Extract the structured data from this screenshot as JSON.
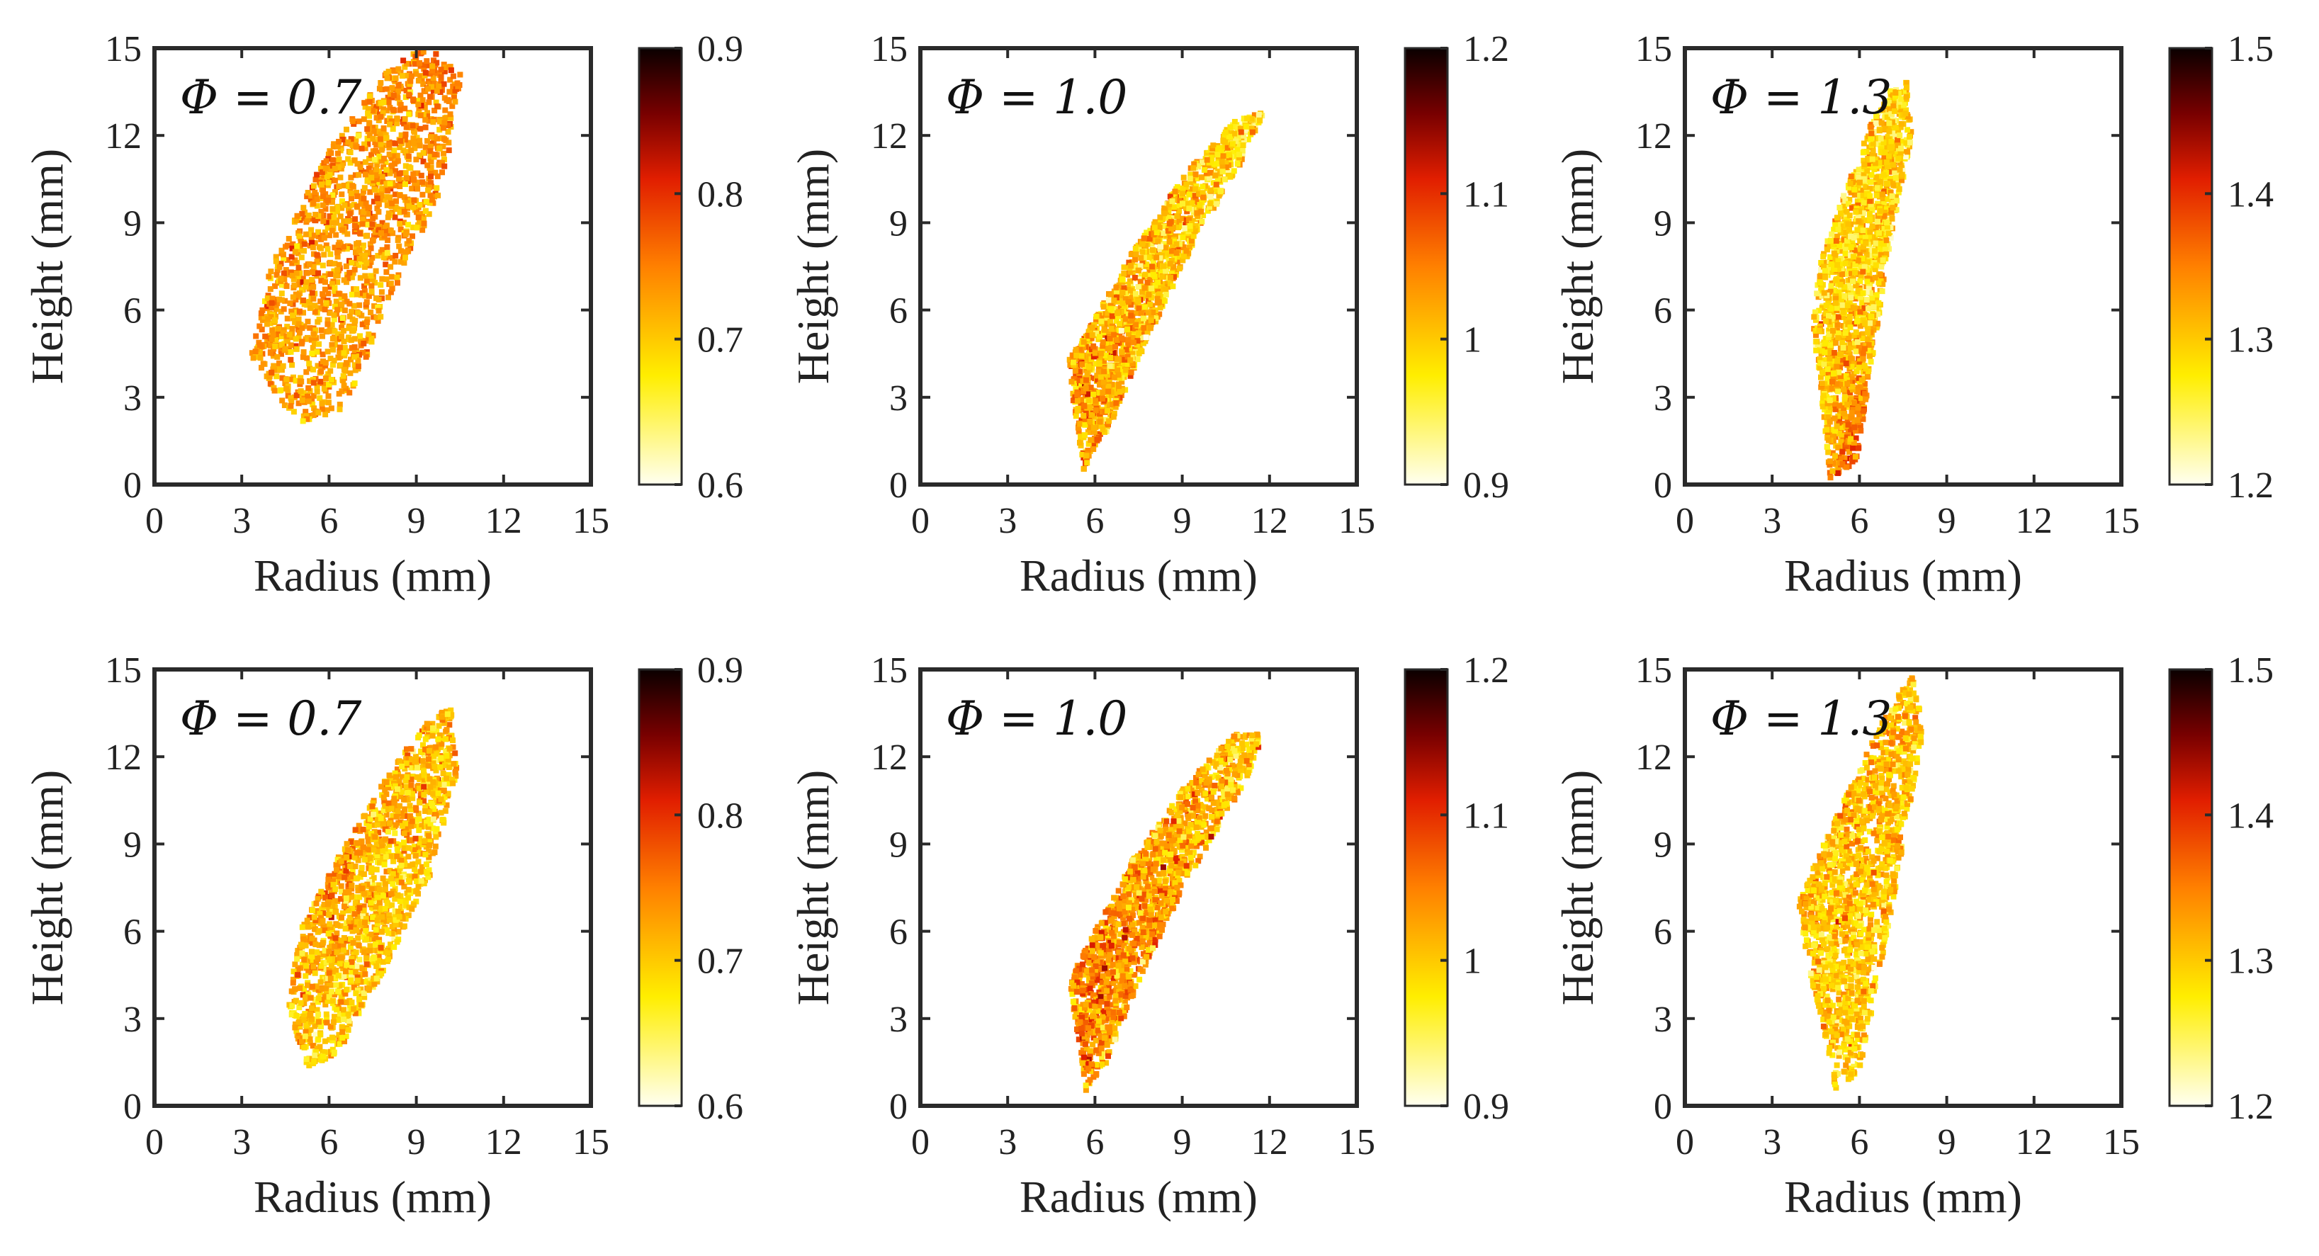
{
  "figure": {
    "rows": 2,
    "cols": 3
  },
  "chart_data": [
    {
      "type": "scatter",
      "panel": "row-1-col-1",
      "annotation_prefix": "Φ = ",
      "annotation_value": "0.7",
      "xlabel": "Radius (mm)",
      "ylabel": "Height (mm)",
      "xlim": [
        0,
        15
      ],
      "ylim": [
        0,
        15
      ],
      "xticks": [
        "0",
        "3",
        "6",
        "9",
        "12",
        "15"
      ],
      "yticks": [
        "0",
        "3",
        "6",
        "9",
        "12",
        "15"
      ],
      "colorbar": {
        "range": [
          0.6,
          0.9
        ],
        "ticks": [
          "0.6",
          "0.7",
          "0.8",
          "0.9"
        ]
      },
      "point_cloud": {
        "polygon": [
          [
            5.1,
            2.1
          ],
          [
            6.5,
            2.6
          ],
          [
            8.2,
            6.5
          ],
          [
            10.0,
            10.5
          ],
          [
            10.6,
            14.2
          ],
          [
            9.4,
            15.0
          ],
          [
            8.3,
            14.6
          ],
          [
            6.0,
            11.5
          ],
          [
            4.0,
            7.5
          ],
          [
            3.3,
            4.5
          ],
          [
            4.0,
            3.2
          ]
        ],
        "typical_value": 0.73,
        "value_spread": 0.025,
        "trend": "none"
      }
    },
    {
      "type": "scatter",
      "panel": "row-1-col-2",
      "annotation_prefix": "Φ = ",
      "annotation_value": "1.0",
      "xlabel": "Radius (mm)",
      "ylabel": "Height (mm)",
      "xlim": [
        0,
        15
      ],
      "ylim": [
        0,
        15
      ],
      "xticks": [
        "0",
        "3",
        "6",
        "9",
        "12",
        "15"
      ],
      "yticks": [
        "0",
        "3",
        "6",
        "9",
        "12",
        "15"
      ],
      "colorbar": {
        "range": [
          0.9,
          1.2
        ],
        "ticks": [
          "0.9",
          "1",
          "1.1",
          "1.2"
        ]
      },
      "point_cloud": {
        "polygon": [
          [
            5.6,
            0.5
          ],
          [
            6.3,
            1.5
          ],
          [
            7.8,
            5.0
          ],
          [
            9.5,
            8.5
          ],
          [
            11.0,
            11.0
          ],
          [
            11.8,
            12.8
          ],
          [
            10.8,
            12.5
          ],
          [
            9.2,
            10.8
          ],
          [
            7.3,
            8.0
          ],
          [
            5.6,
            5.0
          ],
          [
            5.1,
            4.3
          ],
          [
            5.3,
            2.5
          ]
        ],
        "typical_value": 1.0,
        "value_spread": 0.035,
        "trend": "darker-inner-edge"
      }
    },
    {
      "type": "scatter",
      "panel": "row-1-col-3",
      "annotation_prefix": "Φ = ",
      "annotation_value": "1.3",
      "xlabel": "Radius (mm)",
      "ylabel": "Height (mm)",
      "xlim": [
        0,
        15
      ],
      "ylim": [
        0,
        15
      ],
      "xticks": [
        "0",
        "3",
        "6",
        "9",
        "12",
        "15"
      ],
      "yticks": [
        "0",
        "3",
        "6",
        "9",
        "12",
        "15"
      ],
      "colorbar": {
        "range": [
          1.2,
          1.5
        ],
        "ticks": [
          "1.2",
          "1.3",
          "1.4",
          "1.5"
        ]
      },
      "point_cloud": {
        "polygon": [
          [
            5.0,
            0.2
          ],
          [
            5.9,
            0.8
          ],
          [
            6.4,
            4.0
          ],
          [
            7.0,
            8.0
          ],
          [
            7.8,
            12.0
          ],
          [
            7.6,
            14.0
          ],
          [
            7.0,
            13.5
          ],
          [
            6.2,
            12.0
          ],
          [
            5.3,
            9.5
          ],
          [
            4.6,
            7.5
          ],
          [
            4.4,
            5.5
          ],
          [
            4.7,
            3.0
          ]
        ],
        "typical_value": 1.29,
        "value_spread": 0.03,
        "trend": "darker-lower-core"
      }
    },
    {
      "type": "scatter",
      "panel": "row-2-col-1",
      "annotation_prefix": "Φ = ",
      "annotation_value": "0.7",
      "xlabel": "Radius (mm)",
      "ylabel": "Height (mm)",
      "xlim": [
        0,
        15
      ],
      "ylim": [
        0,
        15
      ],
      "xticks": [
        "0",
        "3",
        "6",
        "9",
        "12",
        "15"
      ],
      "yticks": [
        "0",
        "3",
        "6",
        "9",
        "12",
        "15"
      ],
      "colorbar": {
        "range": [
          0.6,
          0.9
        ],
        "ticks": [
          "0.6",
          "0.7",
          "0.8",
          "0.9"
        ]
      },
      "point_cloud": {
        "polygon": [
          [
            5.2,
            1.3
          ],
          [
            6.3,
            1.8
          ],
          [
            7.8,
            4.5
          ],
          [
            9.5,
            8.0
          ],
          [
            10.4,
            11.5
          ],
          [
            10.2,
            13.7
          ],
          [
            9.3,
            13.2
          ],
          [
            7.8,
            11.0
          ],
          [
            6.3,
            8.5
          ],
          [
            5.0,
            6.0
          ],
          [
            4.6,
            3.5
          ]
        ],
        "typical_value": 0.7,
        "value_spread": 0.03,
        "trend": "darker-upper-left"
      }
    },
    {
      "type": "scatter",
      "panel": "row-2-col-2",
      "annotation_prefix": "Φ = ",
      "annotation_value": "1.0",
      "xlabel": "Radius (mm)",
      "ylabel": "Height (mm)",
      "xlim": [
        0,
        15
      ],
      "ylim": [
        0,
        15
      ],
      "xticks": [
        "0",
        "3",
        "6",
        "9",
        "12",
        "15"
      ],
      "yticks": [
        "0",
        "3",
        "6",
        "9",
        "12",
        "15"
      ],
      "colorbar": {
        "range": [
          0.9,
          1.2
        ],
        "ticks": [
          "0.9",
          "1",
          "1.1",
          "1.2"
        ]
      },
      "point_cloud": {
        "polygon": [
          [
            5.7,
            0.5
          ],
          [
            6.4,
            1.5
          ],
          [
            7.8,
            5.0
          ],
          [
            9.6,
            8.5
          ],
          [
            11.2,
            11.2
          ],
          [
            11.8,
            12.8
          ],
          [
            10.8,
            12.8
          ],
          [
            9.1,
            11.0
          ],
          [
            7.2,
            8.3
          ],
          [
            5.6,
            5.2
          ],
          [
            5.1,
            4.3
          ],
          [
            5.4,
            2.5
          ]
        ],
        "typical_value": 1.02,
        "value_spread": 0.035,
        "trend": "darker-inner-edge"
      }
    },
    {
      "type": "scatter",
      "panel": "row-2-col-3",
      "annotation_prefix": "Φ = ",
      "annotation_value": "1.3",
      "xlabel": "Radius (mm)",
      "ylabel": "Height (mm)",
      "xlim": [
        0,
        15
      ],
      "ylim": [
        0,
        15
      ],
      "xticks": [
        "0",
        "3",
        "6",
        "9",
        "12",
        "15"
      ],
      "yticks": [
        "0",
        "3",
        "6",
        "9",
        "12",
        "15"
      ],
      "colorbar": {
        "range": [
          1.2,
          1.5
        ],
        "ticks": [
          "1.2",
          "1.3",
          "1.4",
          "1.5"
        ]
      },
      "point_cloud": {
        "polygon": [
          [
            5.2,
            0.5
          ],
          [
            6.0,
            1.2
          ],
          [
            6.8,
            5.0
          ],
          [
            7.6,
            9.5
          ],
          [
            8.2,
            13.0
          ],
          [
            7.8,
            14.8
          ],
          [
            7.2,
            14.0
          ],
          [
            6.2,
            12.0
          ],
          [
            5.0,
            9.5
          ],
          [
            3.9,
            7.0
          ],
          [
            4.3,
            4.5
          ],
          [
            4.8,
            2.5
          ]
        ],
        "typical_value": 1.3,
        "value_spread": 0.03,
        "trend": "none"
      }
    }
  ]
}
